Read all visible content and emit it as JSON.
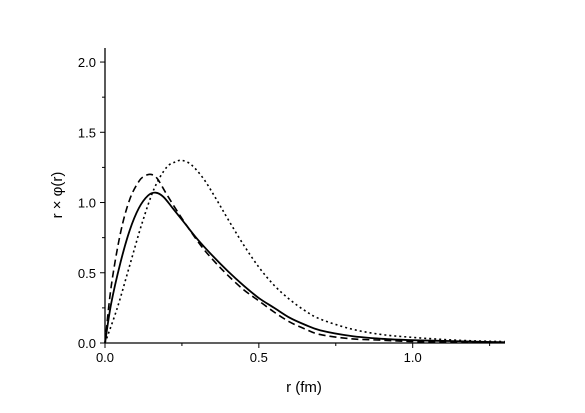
{
  "chart_data": {
    "type": "line",
    "xlabel": "r (fm)",
    "ylabel": "r × φ(r)",
    "xlim": [
      0.0,
      1.3
    ],
    "ylim": [
      0.0,
      2.1
    ],
    "x_ticks": [
      "0.0",
      "0.5",
      "1.0"
    ],
    "y_ticks": [
      "0.0",
      "0.5",
      "1.0",
      "1.5",
      "2.0"
    ],
    "grid": false,
    "legend": "none",
    "series": [
      {
        "style": "solid",
        "x": [
          0.0,
          0.02,
          0.05,
          0.08,
          0.11,
          0.14,
          0.165,
          0.19,
          0.22,
          0.26,
          0.3,
          0.35,
          0.4,
          0.45,
          0.5,
          0.55,
          0.6,
          0.65,
          0.7,
          0.8,
          0.9,
          1.0,
          1.1,
          1.2,
          1.3
        ],
        "y": [
          0.0,
          0.28,
          0.57,
          0.8,
          0.96,
          1.05,
          1.07,
          1.04,
          0.96,
          0.85,
          0.74,
          0.62,
          0.51,
          0.41,
          0.32,
          0.25,
          0.18,
          0.13,
          0.09,
          0.05,
          0.03,
          0.02,
          0.015,
          0.01,
          0.005
        ]
      },
      {
        "style": "dashed",
        "x": [
          0.0,
          0.02,
          0.05,
          0.08,
          0.11,
          0.13,
          0.15,
          0.17,
          0.2,
          0.24,
          0.28,
          0.32,
          0.36,
          0.4,
          0.45,
          0.5,
          0.55,
          0.6,
          0.65,
          0.7,
          0.8,
          0.9,
          1.0,
          1.1,
          1.2,
          1.3
        ],
        "y": [
          0.0,
          0.4,
          0.78,
          1.02,
          1.15,
          1.19,
          1.2,
          1.17,
          1.06,
          0.92,
          0.79,
          0.67,
          0.57,
          0.48,
          0.38,
          0.3,
          0.22,
          0.15,
          0.1,
          0.06,
          0.03,
          0.02,
          0.01,
          0.008,
          0.005,
          0.003
        ]
      },
      {
        "style": "dotted",
        "x": [
          0.0,
          0.04,
          0.08,
          0.12,
          0.16,
          0.2,
          0.23,
          0.25,
          0.28,
          0.32,
          0.36,
          0.4,
          0.45,
          0.5,
          0.55,
          0.6,
          0.65,
          0.7,
          0.8,
          0.9,
          1.0,
          1.1,
          1.2,
          1.3
        ],
        "y": [
          0.0,
          0.25,
          0.55,
          0.85,
          1.1,
          1.25,
          1.29,
          1.3,
          1.27,
          1.17,
          1.03,
          0.88,
          0.7,
          0.54,
          0.41,
          0.31,
          0.23,
          0.17,
          0.1,
          0.06,
          0.04,
          0.025,
          0.015,
          0.01
        ]
      }
    ]
  }
}
